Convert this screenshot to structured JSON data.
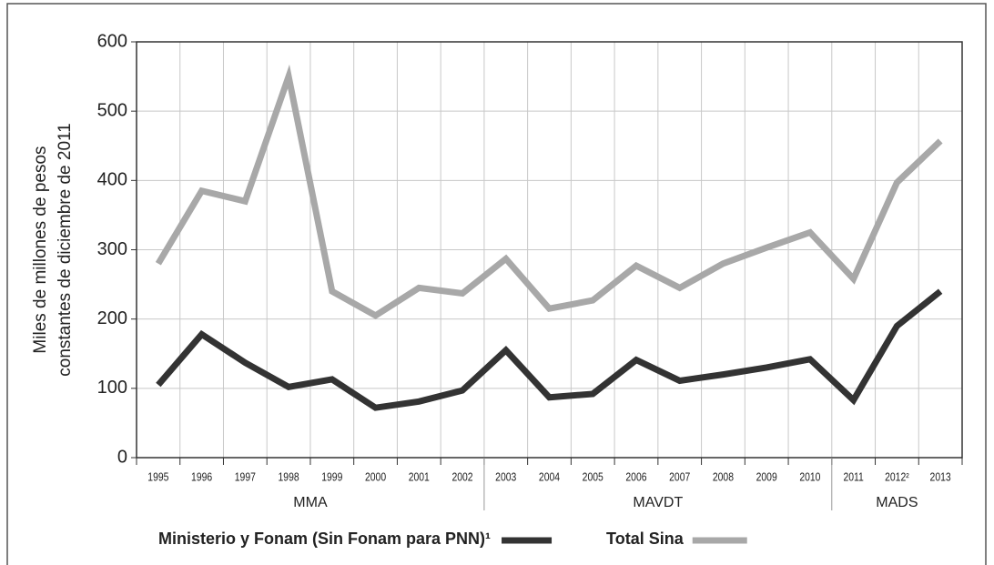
{
  "chart_data": {
    "type": "line",
    "ylabel": [
      "Miles de millones de pesos",
      "constantes de diciembre de 2011"
    ],
    "categories": [
      "1995",
      "1996",
      "1997",
      "1998",
      "1999",
      "2000",
      "2001",
      "2002",
      "2003",
      "2004",
      "2005",
      "2006",
      "2007",
      "2008",
      "2009",
      "2010",
      "2011",
      "2012²",
      "2013"
    ],
    "groups": [
      {
        "label": "MMA",
        "from": "1995",
        "to": "2002"
      },
      {
        "label": "MAVDT",
        "from": "2003",
        "to": "2010"
      },
      {
        "label": "MADS",
        "from": "2011",
        "to": "2013"
      }
    ],
    "series": [
      {
        "name": "Ministerio y Fonam (Sin Fonam para PNN)¹",
        "color": "#333333",
        "values": [
          105,
          178,
          137,
          102,
          113,
          72,
          81,
          97,
          155,
          87,
          92,
          141,
          111,
          120,
          130,
          142,
          83,
          190,
          240
        ]
      },
      {
        "name": "Total Sina",
        "color": "#a8a8a8",
        "values": [
          280,
          385,
          370,
          550,
          240,
          205,
          245,
          237,
          287,
          215,
          227,
          277,
          245,
          280,
          303,
          325,
          258,
          397,
          457
        ]
      }
    ],
    "ylim": [
      0,
      600
    ],
    "yticks": [
      0,
      100,
      200,
      300,
      400,
      500,
      600
    ],
    "grid": true
  }
}
